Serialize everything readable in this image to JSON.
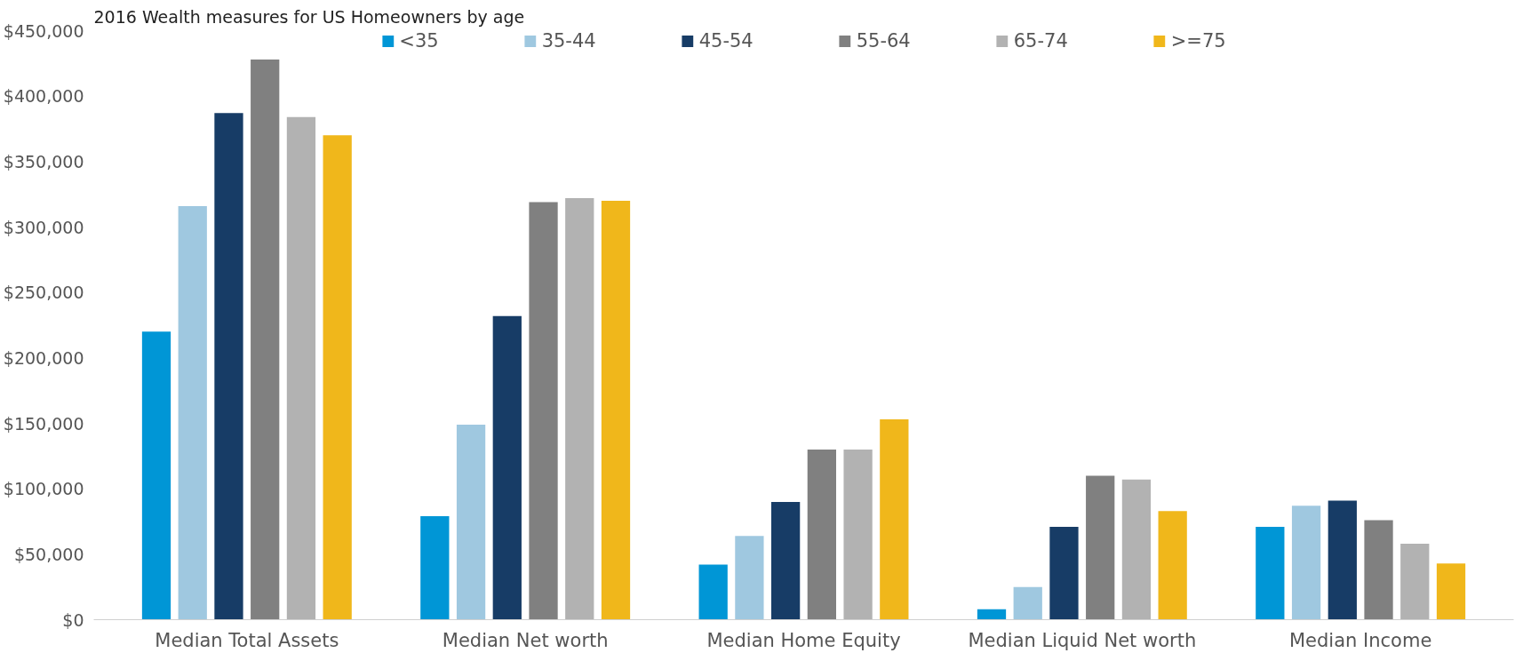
{
  "chart_data": {
    "type": "bar",
    "title": "2016 Wealth measures for US Homeowners by age",
    "categories": [
      "Median Total Assets",
      "Median Net worth",
      "Median Home Equity",
      "Median Liquid Net worth",
      "Median Income"
    ],
    "series": [
      {
        "name": "<35",
        "color": "#0096d6",
        "values": [
          220000,
          79000,
          42000,
          8000,
          71000
        ]
      },
      {
        "name": "35-44",
        "color": "#9fc8e0",
        "values": [
          316000,
          149000,
          64000,
          25000,
          87000
        ]
      },
      {
        "name": "45-54",
        "color": "#173c66",
        "values": [
          387000,
          232000,
          90000,
          71000,
          91000
        ]
      },
      {
        "name": "55-64",
        "color": "#808080",
        "values": [
          428000,
          319000,
          130000,
          110000,
          76000
        ]
      },
      {
        "name": "65-74",
        "color": "#b2b2b2",
        "values": [
          384000,
          322000,
          130000,
          107000,
          58000
        ]
      },
      {
        "name": ">=75",
        "color": "#f0b71b",
        "values": [
          370000,
          320000,
          153000,
          83000,
          43000
        ]
      }
    ],
    "ylim": [
      0,
      450000
    ],
    "yticks": [
      {
        "value": 0,
        "label": "$0"
      },
      {
        "value": 50000,
        "label": "$50,000"
      },
      {
        "value": 100000,
        "label": "$100,000"
      },
      {
        "value": 150000,
        "label": "$150,000"
      },
      {
        "value": 200000,
        "label": "$200,000"
      },
      {
        "value": 250000,
        "label": "$250,000"
      },
      {
        "value": 300000,
        "label": "$300,000"
      },
      {
        "value": 350000,
        "label": "$350,000"
      },
      {
        "value": 400000,
        "label": "$400,000"
      },
      {
        "value": 450000,
        "label": "$450,000"
      }
    ],
    "grid": false,
    "legend": "top"
  }
}
